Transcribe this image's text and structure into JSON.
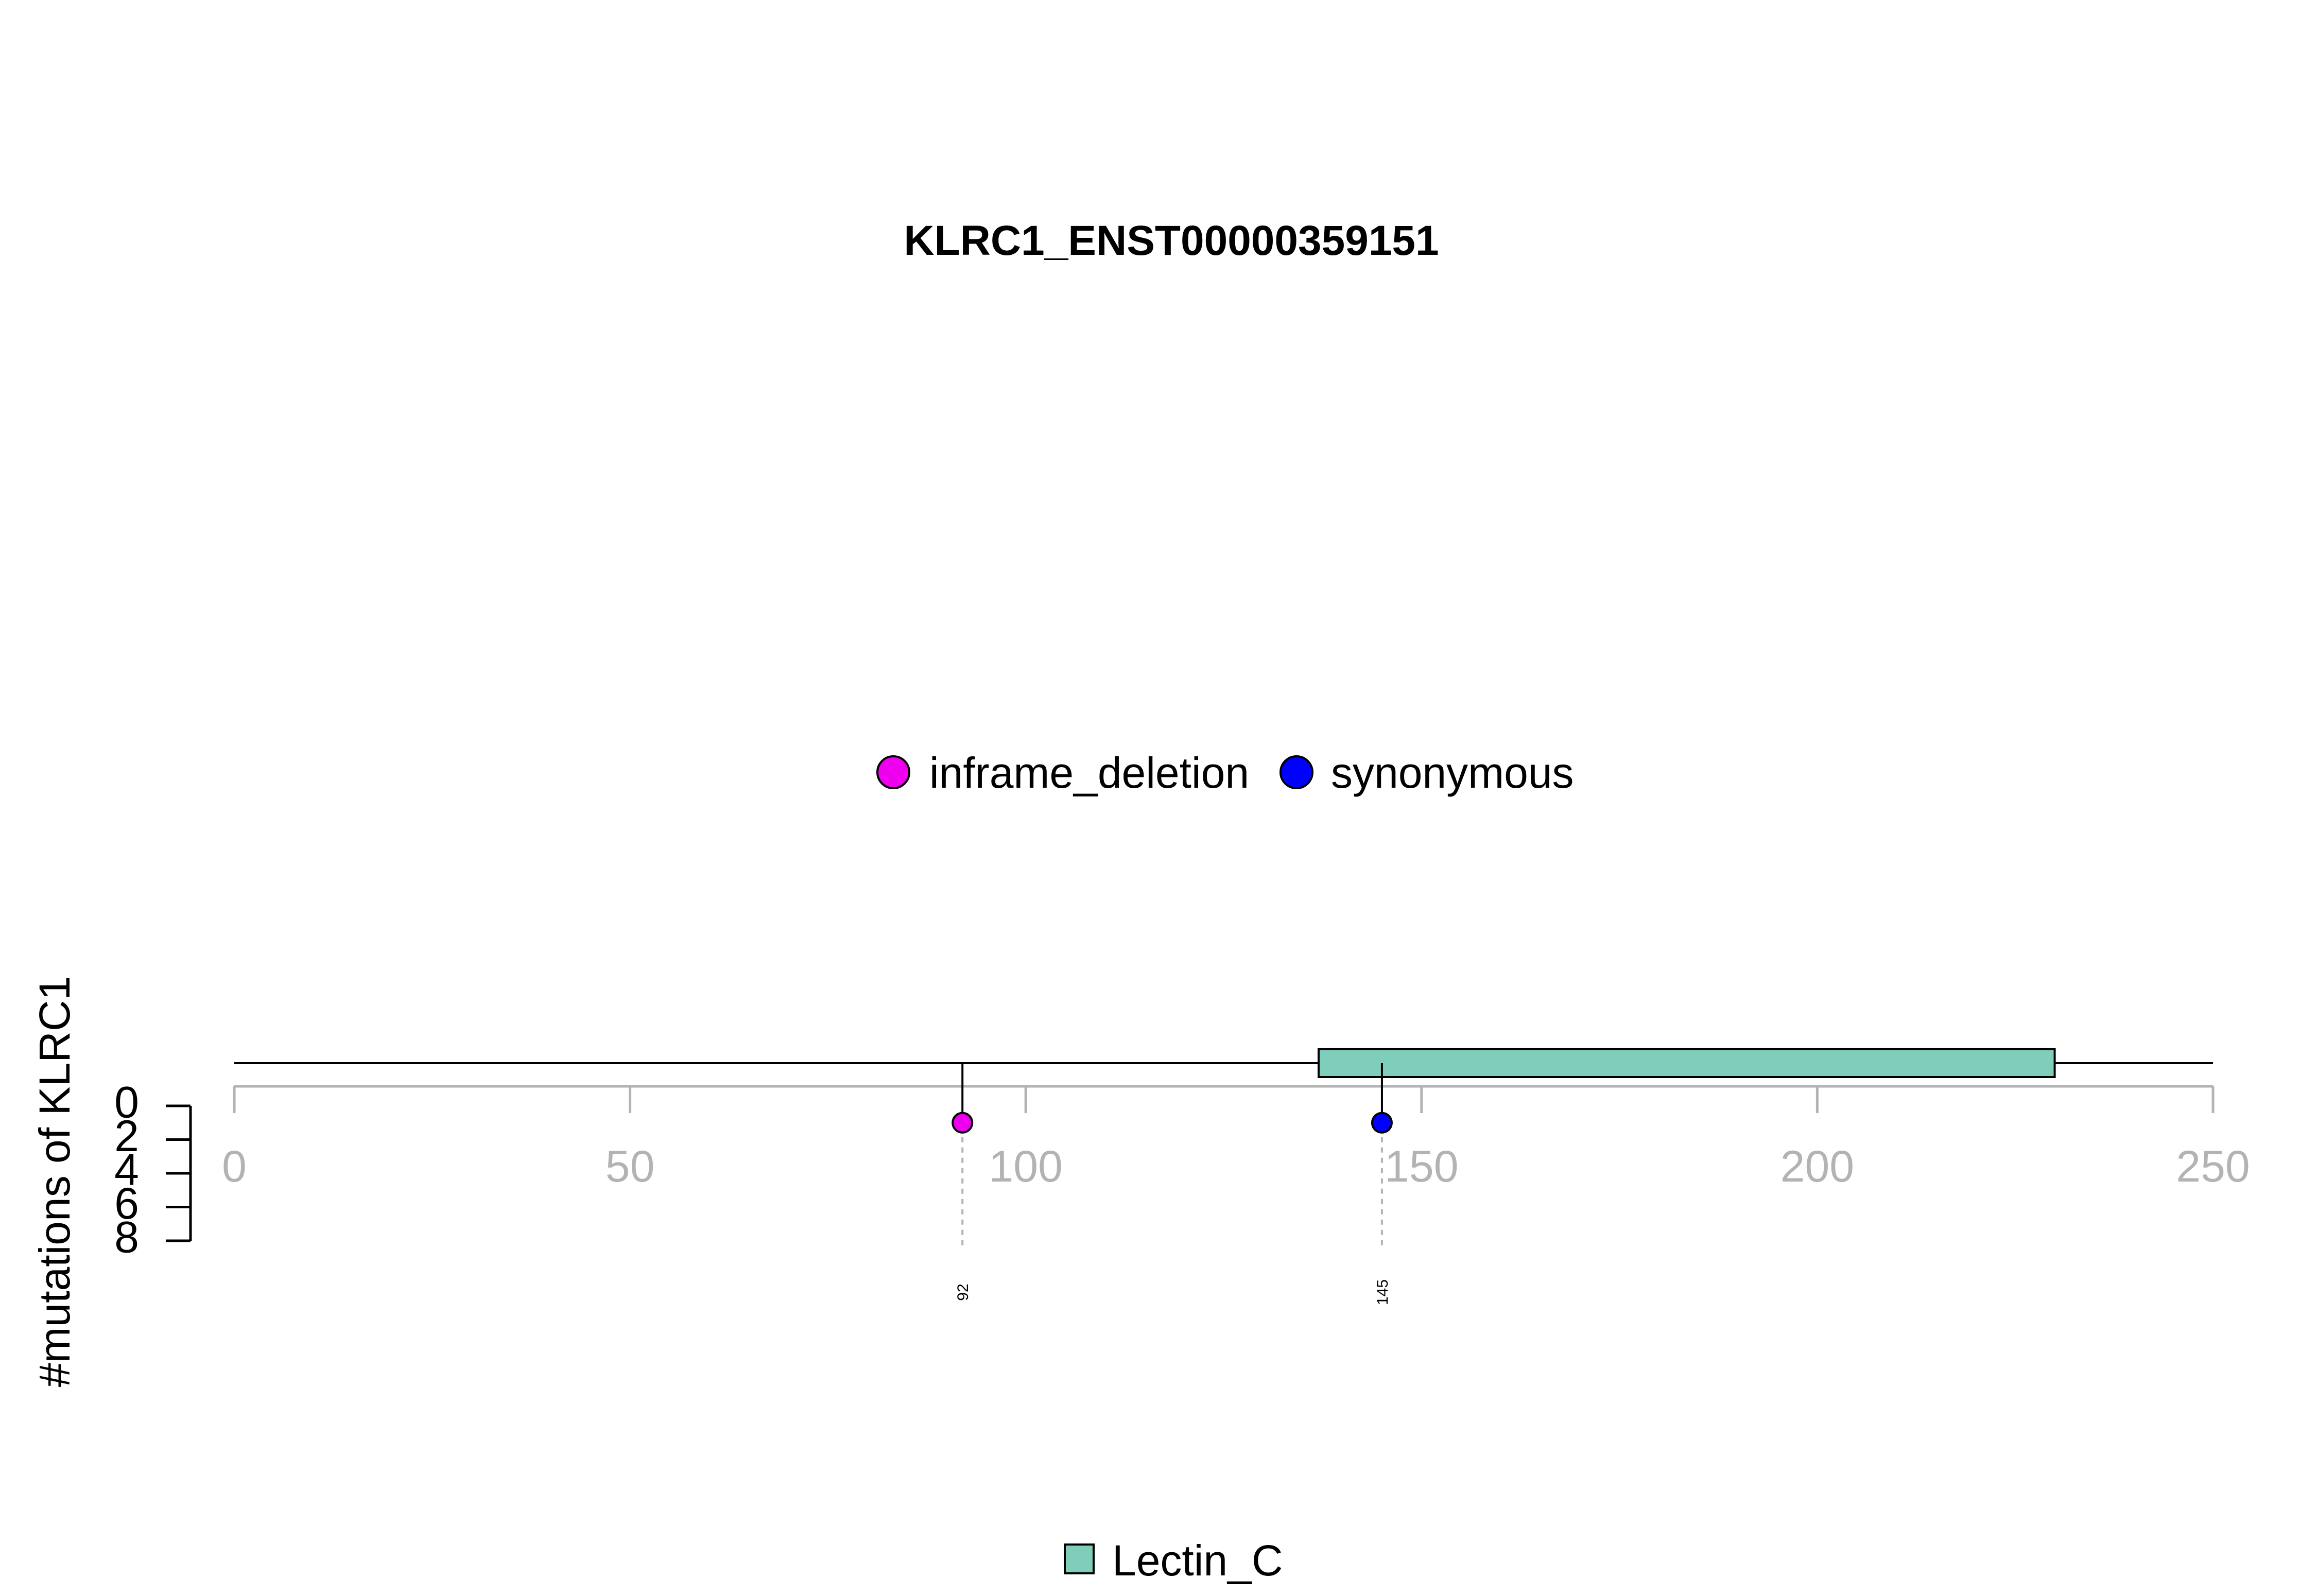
{
  "chart_data": {
    "type": "lollipop",
    "title": "KLRC1_ENST00000359151",
    "ylabel": "#mutations of KLRC1",
    "xlim": [
      0,
      250
    ],
    "x_ticks": [
      0,
      50,
      100,
      150,
      200,
      250
    ],
    "y_ticks": [
      0,
      2,
      4,
      6,
      8
    ],
    "ylim": [
      0,
      8
    ],
    "protein_length": 250,
    "legend_mutations": [
      {
        "label": "inframe_deletion",
        "color": "#ee00ee"
      },
      {
        "label": "synonymous",
        "color": "#0000ff"
      }
    ],
    "mutations": [
      {
        "position": 92,
        "count": 1,
        "type": "inframe_deletion",
        "color": "#ee00ee",
        "label": "92"
      },
      {
        "position": 145,
        "count": 1,
        "type": "synonymous",
        "color": "#0000ff",
        "label": "145"
      }
    ],
    "domains": [
      {
        "name": "Lectin_C",
        "start": 137,
        "end": 230,
        "color": "#7fcdbb"
      }
    ],
    "legend_domains": [
      {
        "label": "Lectin_C",
        "color": "#7fcdbb"
      }
    ]
  }
}
